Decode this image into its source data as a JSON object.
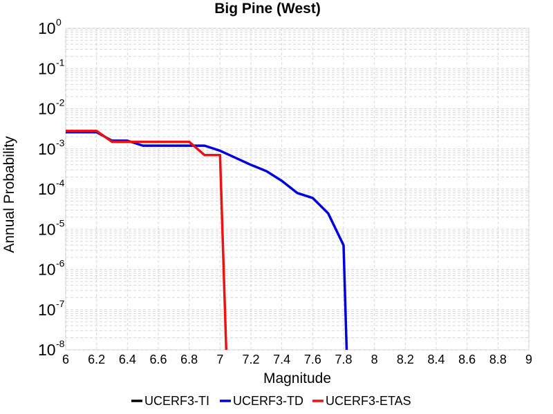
{
  "chart_data": {
    "type": "line",
    "title": "Big Pine (West)",
    "xlabel": "Magnitude",
    "ylabel": "Annual Probability",
    "xlim": [
      6,
      9
    ],
    "ylim": [
      1e-08,
      1
    ],
    "y_scale": "log",
    "grid": true,
    "legend_position": "bottom",
    "x_ticks": [
      "6",
      "6.2",
      "6.4",
      "6.6",
      "6.8",
      "7",
      "7.2",
      "7.4",
      "7.6",
      "7.8",
      "8",
      "8.2",
      "8.4",
      "8.6",
      "8.8",
      "9"
    ],
    "y_ticks": [
      {
        "base": "10",
        "exp": "0"
      },
      {
        "base": "10",
        "exp": "-1"
      },
      {
        "base": "10",
        "exp": "-2"
      },
      {
        "base": "10",
        "exp": "-3"
      },
      {
        "base": "10",
        "exp": "-4"
      },
      {
        "base": "10",
        "exp": "-5"
      },
      {
        "base": "10",
        "exp": "-6"
      },
      {
        "base": "10",
        "exp": "-7"
      },
      {
        "base": "10",
        "exp": "-8"
      }
    ],
    "series": [
      {
        "name": "UCERF3-TI",
        "color": "#000000",
        "x": [],
        "y": []
      },
      {
        "name": "UCERF3-TD",
        "color": "#0000dd",
        "x": [
          6.0,
          6.2,
          6.3,
          6.4,
          6.5,
          6.6,
          6.7,
          6.8,
          6.9,
          7.0,
          7.1,
          7.2,
          7.3,
          7.4,
          7.5,
          7.6,
          7.7,
          7.8,
          7.82
        ],
        "y": [
          0.0026,
          0.0026,
          0.0016,
          0.0016,
          0.0012,
          0.0012,
          0.0012,
          0.0012,
          0.0012,
          0.0009,
          0.0006,
          0.0004,
          0.00028,
          0.00016,
          8e-05,
          6e-05,
          2.5e-05,
          4e-06,
          1e-08
        ]
      },
      {
        "name": "UCERF3-ETAS",
        "color": "#ee1111",
        "x": [
          6.0,
          6.2,
          6.3,
          6.4,
          6.5,
          6.6,
          6.7,
          6.8,
          6.9,
          7.0,
          7.04
        ],
        "y": [
          0.0028,
          0.0028,
          0.0015,
          0.0015,
          0.0015,
          0.0015,
          0.0015,
          0.0015,
          0.0007,
          0.0007,
          1e-08
        ]
      }
    ]
  }
}
